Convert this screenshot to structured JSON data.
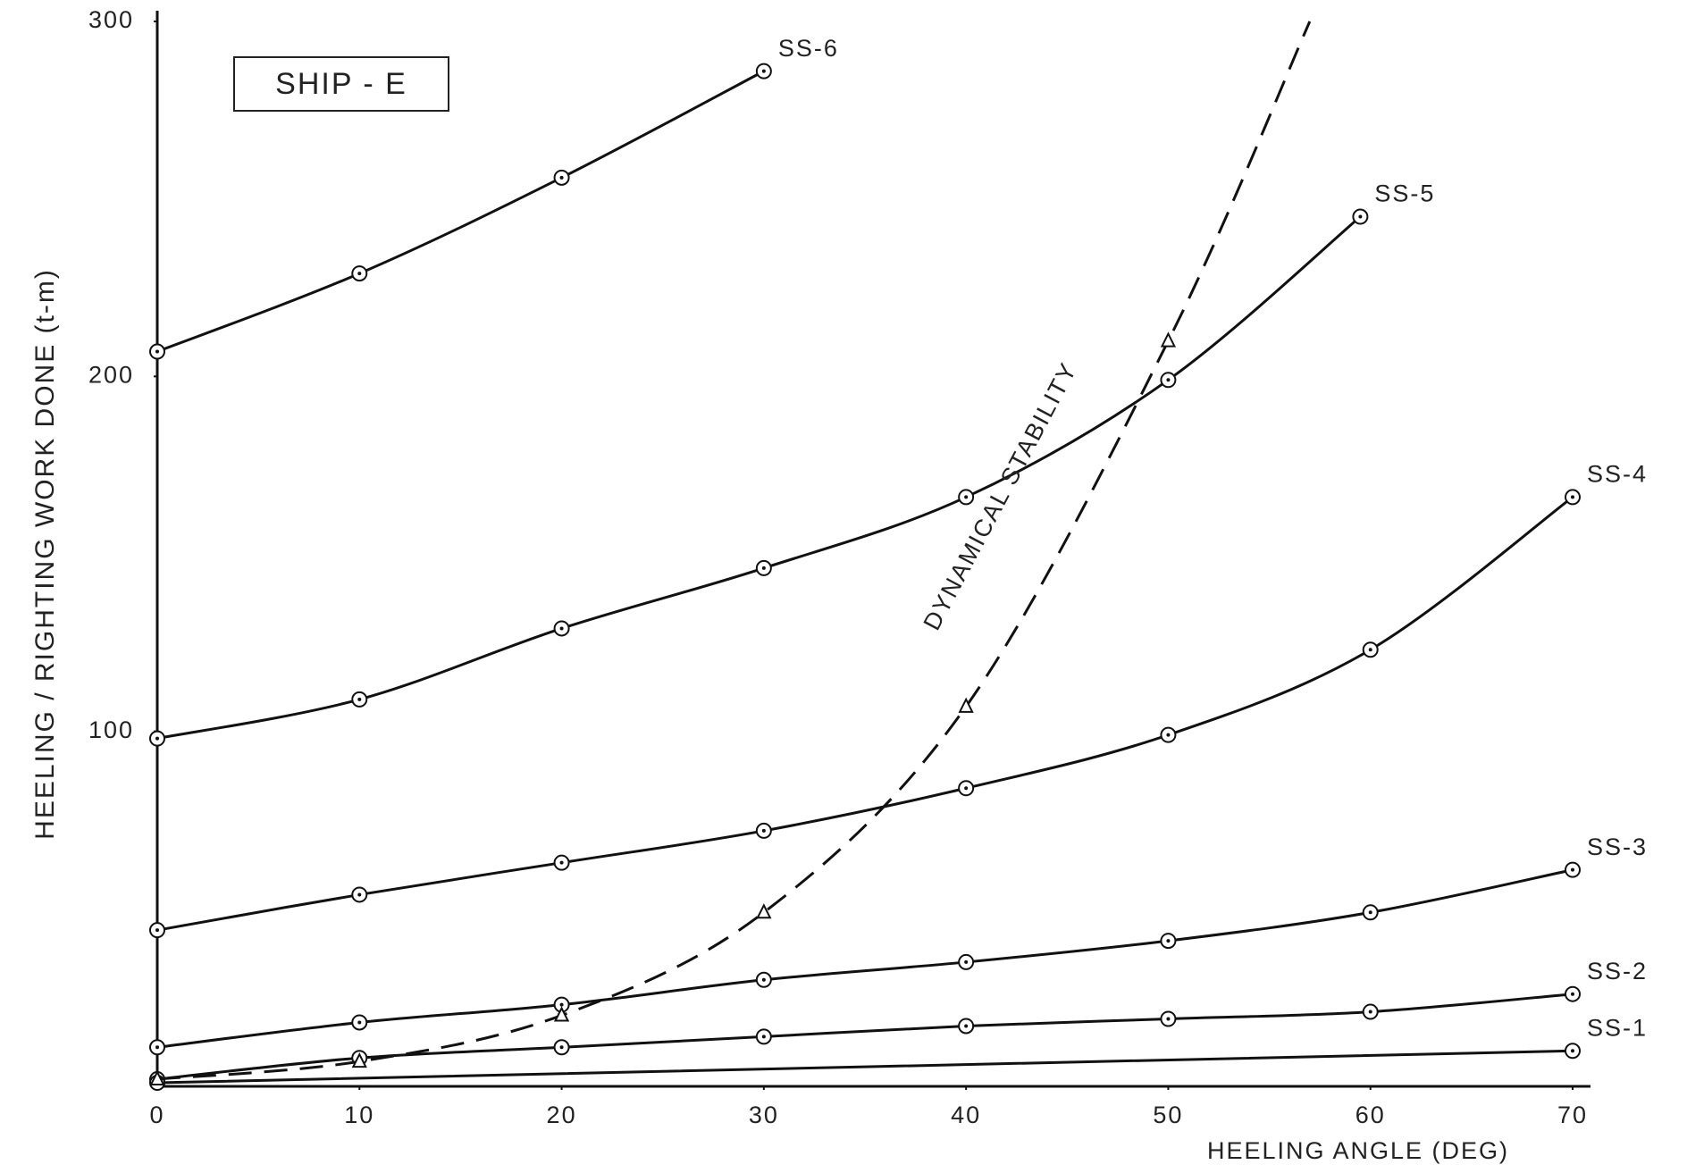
{
  "chart_data": {
    "type": "line",
    "title": "SHIP - E",
    "x_label": "HEELING ANGLE (DEG)",
    "y_label": "HEELING / RIGHTING WORK DONE (t-m)",
    "xlim": [
      0,
      70
    ],
    "ylim": [
      0,
      300
    ],
    "xticks": [
      0,
      10,
      20,
      30,
      40,
      50,
      60,
      70
    ],
    "yticks": [
      100,
      200,
      300
    ],
    "grid": false,
    "series": [
      {
        "name": "SS-6",
        "color": "#111111",
        "marker": "circle",
        "dashed": false,
        "x": [
          0,
          10,
          20,
          30
        ],
        "values": [
          207,
          229,
          256,
          286
        ]
      },
      {
        "name": "SS-5",
        "color": "#111111",
        "marker": "circle",
        "dashed": false,
        "x": [
          0,
          10,
          20,
          30,
          40,
          50,
          59.5
        ],
        "values": [
          98,
          109,
          129,
          146,
          166,
          199,
          245
        ]
      },
      {
        "name": "SS-4",
        "color": "#111111",
        "marker": "circle",
        "dashed": false,
        "x": [
          0,
          10,
          20,
          30,
          40,
          50,
          60,
          70
        ],
        "values": [
          44,
          54,
          63,
          72,
          84,
          99,
          123,
          166
        ]
      },
      {
        "name": "SS-3",
        "color": "#111111",
        "marker": "circle",
        "dashed": false,
        "x": [
          0,
          10,
          20,
          30,
          40,
          50,
          60,
          70
        ],
        "values": [
          11,
          18,
          23,
          30,
          35,
          41,
          49,
          61
        ]
      },
      {
        "name": "SS-2",
        "color": "#111111",
        "marker": "circle",
        "dashed": false,
        "x": [
          0,
          10,
          20,
          30,
          40,
          50,
          60,
          70
        ],
        "values": [
          2,
          8,
          11,
          14,
          17,
          19,
          21,
          26
        ]
      },
      {
        "name": "SS-1",
        "color": "#111111",
        "marker": "circle",
        "dashed": false,
        "x": [
          0,
          70
        ],
        "values": [
          1,
          10
        ]
      },
      {
        "name": "DYNAMICAL STABILITY",
        "color": "#111111",
        "marker": "triangle",
        "dashed": true,
        "x": [
          0,
          10,
          20,
          30,
          40,
          50,
          57
        ],
        "values": [
          2,
          7,
          20,
          49,
          107,
          210,
          300
        ]
      }
    ]
  }
}
